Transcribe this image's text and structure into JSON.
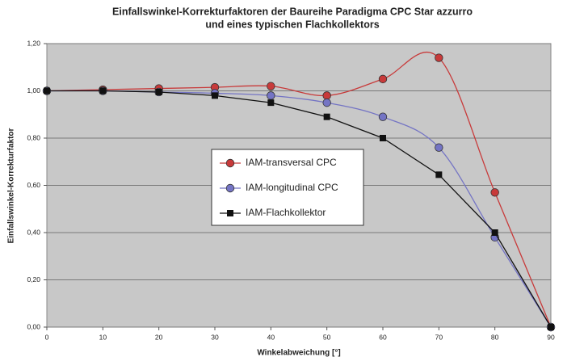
{
  "chart_data": {
    "type": "line",
    "title": [
      "Einfallswinkel-Korrekturfaktoren der Baureihe Paradigma CPC Star azzurro",
      "und eines typischen Flachkollektors"
    ],
    "x_label": "Winkelabweichung [°]",
    "y_label": "Einfallswinkel-Korrekturfaktor",
    "x": [
      0,
      10,
      20,
      30,
      40,
      50,
      60,
      70,
      80,
      90
    ],
    "series": [
      {
        "name": "IAM-transversal CPC",
        "color": "#c83a3a",
        "marker": "circle",
        "smooth": true,
        "values": [
          1.0,
          1.005,
          1.01,
          1.015,
          1.02,
          0.98,
          1.05,
          1.14,
          0.57,
          0.0
        ]
      },
      {
        "name": "IAM-longitudinal CPC",
        "color": "#7474c4",
        "marker": "circle",
        "smooth": true,
        "values": [
          1.0,
          1.0,
          0.995,
          0.99,
          0.98,
          0.95,
          0.89,
          0.76,
          0.38,
          0.0
        ]
      },
      {
        "name": "IAM-Flachkollektor",
        "color": "#111111",
        "marker": "square",
        "smooth": false,
        "values": [
          1.0,
          1.0,
          0.995,
          0.98,
          0.95,
          0.89,
          0.8,
          0.645,
          0.4,
          0.0
        ]
      }
    ],
    "xlim": [
      0,
      90
    ],
    "xticks": [
      0,
      10,
      20,
      30,
      40,
      50,
      60,
      70,
      80,
      90
    ],
    "ylim": [
      0,
      1.2
    ],
    "yticks": [
      {
        "value": 0,
        "label": "0,00"
      },
      {
        "value": 0.2,
        "label": "0,20"
      },
      {
        "value": 0.4,
        "label": "0,40"
      },
      {
        "value": 0.6,
        "label": "0,60"
      },
      {
        "value": 0.8,
        "label": "0,80"
      },
      {
        "value": 1.0,
        "label": "1,00"
      },
      {
        "value": 1.2,
        "label": "1,20"
      }
    ],
    "grid": true,
    "legend": "center",
    "plot_background": "#c8c8c8"
  }
}
